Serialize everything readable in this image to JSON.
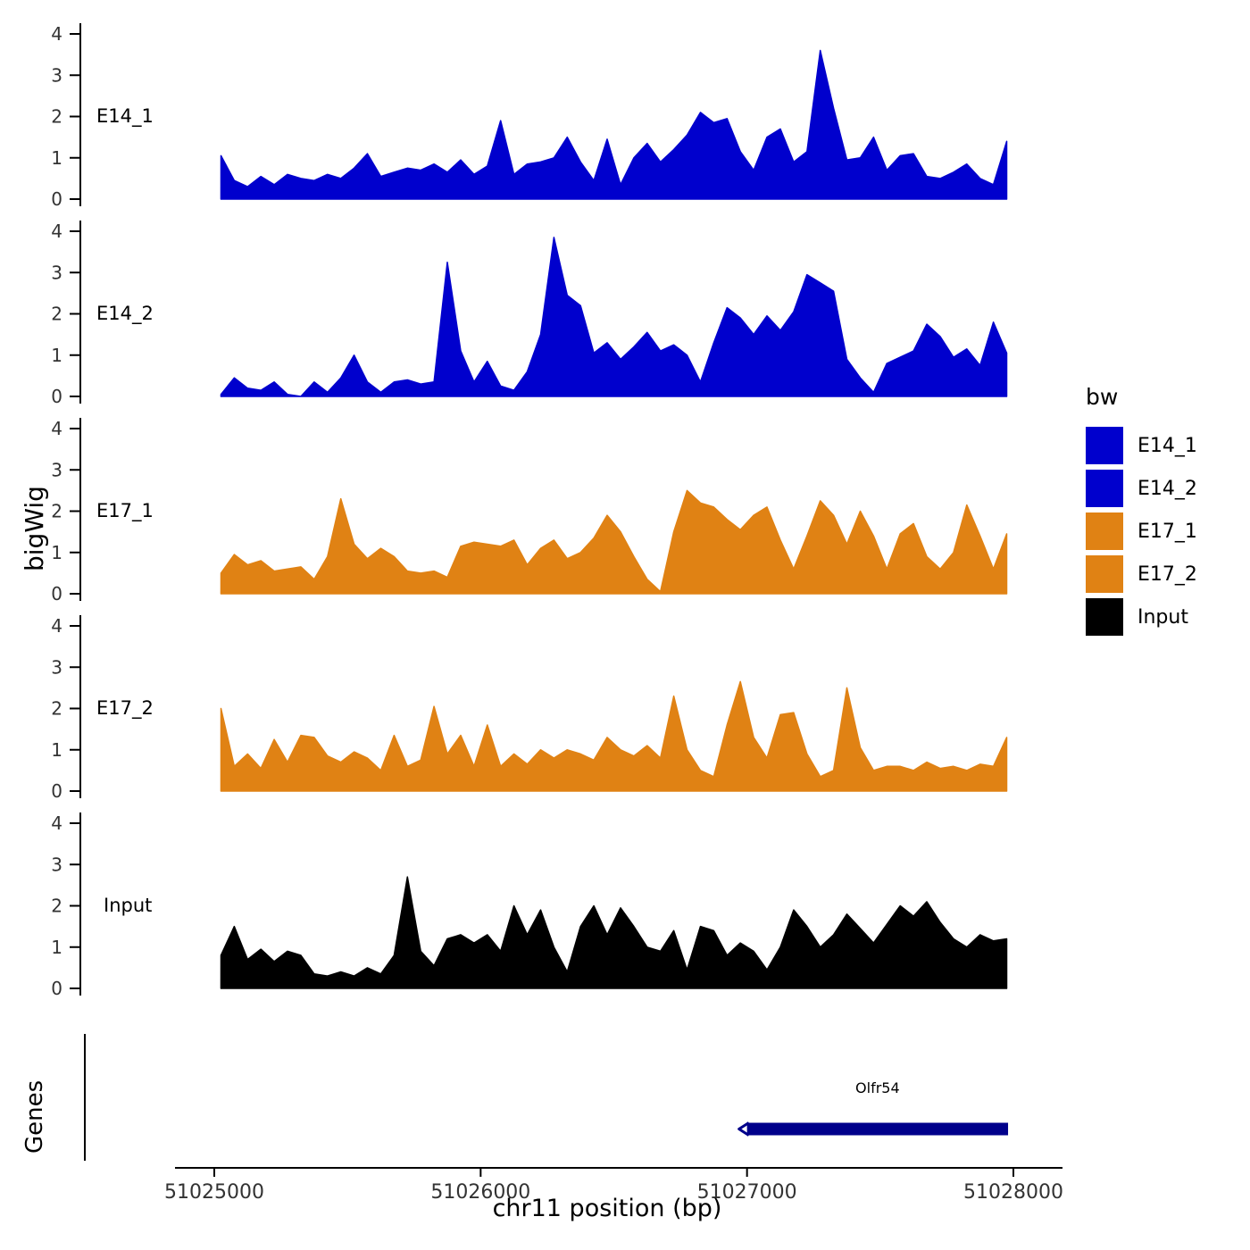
{
  "chart_data": {
    "type": "area",
    "title": "",
    "xlabel": "chr11 position (bp)",
    "ylabel": "bigWig",
    "x_domain": [
      51025000,
      51028000
    ],
    "x_ticks": [
      51025000,
      51026000,
      51027000,
      51028000
    ],
    "y_ticks": [
      0,
      1,
      2,
      3,
      4
    ],
    "ylim": [
      0,
      4
    ],
    "x_start": 51025025,
    "x_step": 50,
    "grid": "off",
    "legend_position": "right",
    "series": [
      {
        "name": "E14_1",
        "color": "#0000CD",
        "values": [
          1.05,
          0.45,
          0.3,
          0.55,
          0.35,
          0.6,
          0.5,
          0.45,
          0.6,
          0.5,
          0.75,
          1.1,
          0.55,
          0.65,
          0.75,
          0.7,
          0.85,
          0.65,
          0.95,
          0.6,
          0.8,
          1.9,
          0.6,
          0.85,
          0.9,
          1.0,
          1.5,
          0.9,
          0.45,
          1.45,
          0.35,
          1.0,
          1.35,
          0.9,
          1.2,
          1.55,
          2.1,
          1.85,
          1.95,
          1.15,
          0.7,
          1.5,
          1.7,
          0.9,
          1.15,
          3.6,
          2.2,
          0.95,
          1.0,
          1.5,
          0.7,
          1.05,
          1.1,
          0.55,
          0.5,
          0.65,
          0.85,
          0.5,
          0.35,
          1.4
        ]
      },
      {
        "name": "E14_2",
        "color": "#0000CD",
        "values": [
          0.05,
          0.45,
          0.2,
          0.15,
          0.35,
          0.05,
          0.0,
          0.35,
          0.1,
          0.45,
          1.0,
          0.35,
          0.1,
          0.35,
          0.4,
          0.3,
          0.35,
          3.25,
          1.1,
          0.35,
          0.85,
          0.25,
          0.15,
          0.6,
          1.5,
          3.85,
          2.45,
          2.2,
          1.05,
          1.3,
          0.9,
          1.2,
          1.55,
          1.1,
          1.25,
          1.0,
          0.35,
          1.3,
          2.15,
          1.9,
          1.5,
          1.95,
          1.6,
          2.05,
          2.95,
          2.75,
          2.55,
          0.9,
          0.45,
          0.1,
          0.8,
          0.95,
          1.1,
          1.75,
          1.45,
          0.95,
          1.15,
          0.75,
          1.8,
          1.05
        ]
      },
      {
        "name": "E17_1",
        "color": "#E08214",
        "values": [
          0.5,
          0.95,
          0.7,
          0.8,
          0.55,
          0.6,
          0.65,
          0.35,
          0.9,
          2.3,
          1.2,
          0.85,
          1.1,
          0.9,
          0.55,
          0.5,
          0.55,
          0.4,
          1.15,
          1.25,
          1.2,
          1.15,
          1.3,
          0.7,
          1.1,
          1.3,
          0.85,
          1.0,
          1.35,
          1.9,
          1.5,
          0.9,
          0.35,
          0.05,
          1.5,
          2.5,
          2.2,
          2.1,
          1.8,
          1.55,
          1.9,
          2.1,
          1.3,
          0.6,
          1.4,
          2.25,
          1.9,
          1.2,
          2.0,
          1.4,
          0.6,
          1.45,
          1.7,
          0.9,
          0.6,
          1.0,
          2.15,
          1.4,
          0.6,
          1.45
        ]
      },
      {
        "name": "E17_2",
        "color": "#E08214",
        "values": [
          2.0,
          0.6,
          0.9,
          0.55,
          1.25,
          0.7,
          1.35,
          1.3,
          0.85,
          0.7,
          0.95,
          0.8,
          0.5,
          1.35,
          0.6,
          0.75,
          2.05,
          0.9,
          1.35,
          0.6,
          1.6,
          0.6,
          0.9,
          0.65,
          1.0,
          0.8,
          1.0,
          0.9,
          0.75,
          1.3,
          1.0,
          0.85,
          1.1,
          0.8,
          2.3,
          1.0,
          0.5,
          0.35,
          1.6,
          2.65,
          1.3,
          0.8,
          1.85,
          1.9,
          0.9,
          0.35,
          0.5,
          2.5,
          1.05,
          0.5,
          0.6,
          0.6,
          0.5,
          0.7,
          0.55,
          0.6,
          0.5,
          0.65,
          0.6,
          1.3
        ]
      },
      {
        "name": "Input",
        "color": "#000000",
        "values": [
          0.8,
          1.5,
          0.7,
          0.95,
          0.65,
          0.9,
          0.8,
          0.35,
          0.3,
          0.4,
          0.3,
          0.5,
          0.35,
          0.8,
          2.7,
          0.9,
          0.55,
          1.2,
          1.3,
          1.1,
          1.3,
          0.9,
          2.0,
          1.3,
          1.9,
          1.0,
          0.4,
          1.5,
          2.0,
          1.3,
          1.95,
          1.5,
          1.0,
          0.9,
          1.4,
          0.45,
          1.5,
          1.4,
          0.8,
          1.1,
          0.9,
          0.45,
          1.0,
          1.9,
          1.5,
          1.0,
          1.3,
          1.8,
          1.45,
          1.1,
          1.55,
          2.0,
          1.75,
          2.1,
          1.6,
          1.2,
          1.0,
          1.3,
          1.15,
          1.2
        ]
      }
    ],
    "gene_track": {
      "axis_label": "Genes",
      "genes": [
        {
          "name": "Olfr54",
          "start": 51027000,
          "end": 51027980,
          "color": "#00008B",
          "strand": "left"
        }
      ]
    }
  },
  "legend": {
    "title": "bw",
    "items": [
      {
        "label": "E14_1",
        "color": "#0000CD"
      },
      {
        "label": "E14_2",
        "color": "#0000CD"
      },
      {
        "label": "E17_1",
        "color": "#E08214"
      },
      {
        "label": "E17_2",
        "color": "#E08214"
      },
      {
        "label": "Input",
        "color": "#000000"
      }
    ]
  }
}
